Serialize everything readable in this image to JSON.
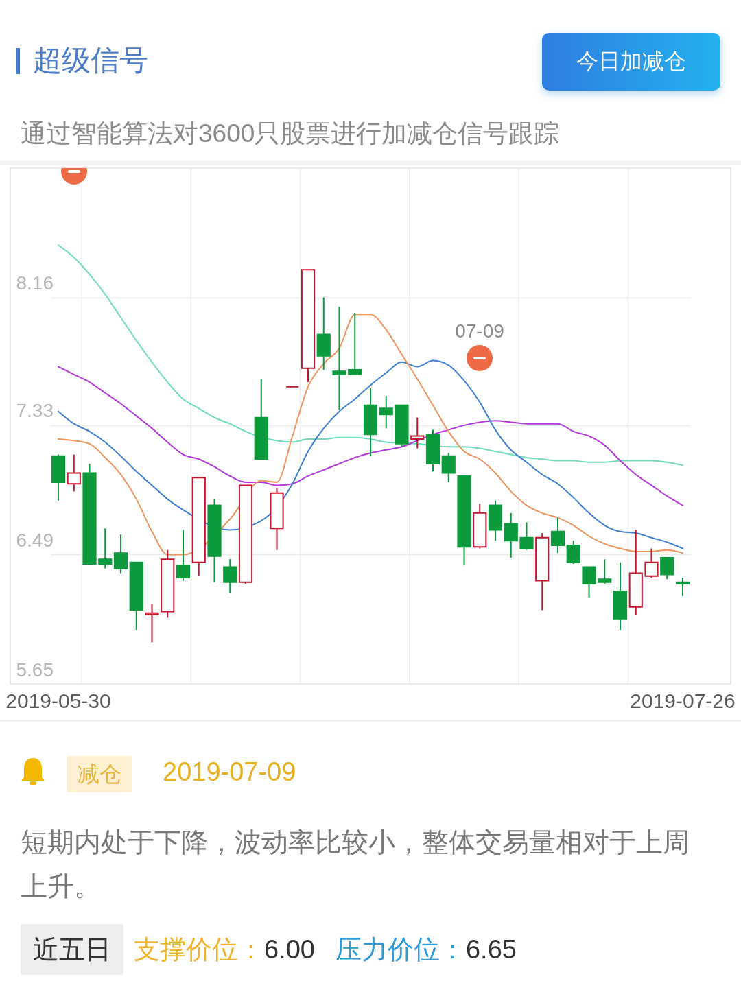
{
  "chart_data": {
    "type": "candlestick",
    "title": "超级信号",
    "subtitle": "通过智能算法对3600只股票进行加减仓信号跟踪",
    "annotations": [
      "今日加减仓",
      "07-09",
      "减仓",
      "2019-07-09",
      "短期内处于下降，波动率比较小，整体交易量相对于上周上升。",
      "近五日",
      "支撑价位：",
      "6.00",
      "压力价位：",
      "6.65"
    ],
    "categories": [
      "2019-05-30",
      null,
      null,
      null,
      null,
      null,
      null,
      null,
      null,
      null,
      null,
      null,
      null,
      null,
      null,
      null,
      null,
      null,
      null,
      null,
      null,
      null,
      null,
      null,
      null,
      null,
      null,
      null,
      null,
      null,
      null,
      null,
      null,
      null,
      null,
      null,
      null,
      null,
      null,
      null,
      "2019-07-26"
    ],
    "ohlc": [
      [
        7.13,
        7.14,
        6.84,
        6.96
      ],
      [
        6.95,
        7.14,
        6.9,
        7.02
      ],
      [
        7.02,
        7.08,
        6.43,
        6.43
      ],
      [
        6.46,
        6.66,
        6.4,
        6.43
      ],
      [
        6.5,
        6.62,
        6.37,
        6.4
      ],
      [
        6.44,
        6.44,
        6.0,
        6.13
      ],
      [
        6.1,
        6.17,
        5.92,
        6.11
      ],
      [
        6.12,
        6.52,
        6.08,
        6.46
      ],
      [
        6.42,
        6.65,
        6.32,
        6.34
      ],
      [
        6.44,
        6.99,
        6.35,
        6.99
      ],
      [
        6.81,
        6.85,
        6.31,
        6.48
      ],
      [
        6.41,
        6.46,
        6.24,
        6.31
      ],
      [
        6.31,
        6.94,
        6.3,
        6.94
      ],
      [
        7.38,
        7.63,
        7.11,
        7.11
      ],
      [
        6.66,
        6.92,
        6.52,
        6.89
      ],
      [
        7.58,
        7.58,
        7.58,
        7.58
      ],
      [
        7.7,
        8.34,
        7.61,
        8.34
      ],
      [
        7.92,
        8.16,
        7.69,
        7.78
      ],
      [
        7.68,
        8.1,
        7.43,
        7.66
      ],
      [
        7.69,
        8.06,
        7.66,
        7.66
      ],
      [
        7.46,
        7.57,
        7.13,
        7.27
      ],
      [
        7.44,
        7.52,
        7.31,
        7.4
      ],
      [
        7.46,
        7.46,
        7.19,
        7.21
      ],
      [
        7.24,
        7.38,
        7.18,
        7.26
      ],
      [
        7.27,
        7.3,
        7.03,
        7.08
      ],
      [
        7.13,
        7.15,
        6.96,
        7.02
      ],
      [
        7.0,
        7.0,
        6.42,
        6.54
      ],
      [
        6.54,
        6.82,
        6.53,
        6.76
      ],
      [
        6.81,
        6.84,
        6.58,
        6.65
      ],
      [
        6.69,
        6.76,
        6.47,
        6.58
      ],
      [
        6.6,
        6.7,
        6.52,
        6.53
      ],
      [
        6.32,
        6.63,
        6.13,
        6.6
      ],
      [
        6.64,
        6.73,
        6.5,
        6.55
      ],
      [
        6.55,
        6.58,
        6.43,
        6.44
      ],
      [
        6.41,
        6.41,
        6.21,
        6.3
      ],
      [
        6.33,
        6.46,
        6.3,
        6.31
      ],
      [
        6.25,
        6.44,
        6.0,
        6.07
      ],
      [
        6.15,
        6.65,
        6.1,
        6.37
      ],
      [
        6.35,
        6.53,
        6.34,
        6.44
      ],
      [
        6.47,
        6.47,
        6.33,
        6.36
      ],
      [
        6.31,
        6.34,
        6.22,
        6.3
      ]
    ],
    "colors": [
      "#0d9a3c",
      "#c3162f",
      "#0d9a3c",
      "#0d9a3c",
      "#0d9a3c",
      "#0d9a3c",
      "#c3162f",
      "#c3162f",
      "#0d9a3c",
      "#c3162f",
      "#0d9a3c",
      "#0d9a3c",
      "#c3162f",
      "#0d9a3c",
      "#c3162f",
      "#c3162f",
      "#c3162f",
      "#0d9a3c",
      "#0d9a3c",
      "#0d9a3c",
      "#0d9a3c",
      "#0d9a3c",
      "#0d9a3c",
      "#c3162f",
      "#0d9a3c",
      "#0d9a3c",
      "#0d9a3c",
      "#c3162f",
      "#0d9a3c",
      "#0d9a3c",
      "#0d9a3c",
      "#c3162f",
      "#0d9a3c",
      "#0d9a3c",
      "#0d9a3c",
      "#0d9a3c",
      "#0d9a3c",
      "#c3162f",
      "#c3162f",
      "#0d9a3c",
      "#0d9a3c"
    ],
    "series": [
      {
        "type": "line",
        "color": "#6fdcbf",
        "values": [
          8.5,
          8.42,
          8.31,
          8.18,
          8.03,
          7.88,
          7.74,
          7.61,
          7.5,
          7.44,
          7.38,
          7.34,
          7.29,
          null,
          7.23,
          7.22,
          7.24,
          7.24,
          7.25,
          7.25,
          7.24,
          7.22,
          null,
          7.21,
          null,
          7.19,
          7.19,
          7.18,
          7.16,
          7.14,
          7.12,
          7.11,
          7.1,
          7.1,
          7.09,
          7.09,
          7.1,
          7.1,
          7.1,
          7.09,
          7.07
        ]
      },
      {
        "type": "line",
        "color": "#b339dc",
        "values": [
          7.71,
          7.66,
          7.61,
          7.54,
          7.47,
          7.39,
          7.31,
          7.22,
          7.14,
          7.11,
          7.06,
          7.0,
          6.96,
          6.96,
          6.94,
          6.95,
          7.0,
          7.04,
          7.08,
          7.12,
          7.15,
          7.17,
          7.19,
          7.23,
          7.27,
          7.3,
          7.33,
          7.35,
          7.36,
          7.35,
          7.34,
          7.34,
          7.34,
          7.29,
          7.26,
          7.2,
          7.1,
          7.01,
          6.94,
          6.87,
          6.81
        ]
      },
      {
        "type": "line",
        "color": "#3d7fd2",
        "values": [
          7.42,
          7.34,
          7.29,
          7.22,
          7.13,
          7.03,
          6.94,
          6.85,
          6.78,
          null,
          null,
          6.65,
          null,
          6.71,
          null,
          6.95,
          7.16,
          7.31,
          7.42,
          7.5,
          7.59,
          7.67,
          7.74,
          7.71,
          7.75,
          7.72,
          7.62,
          7.48,
          7.3,
          7.17,
          7.09,
          7.01,
          6.95,
          6.86,
          6.76,
          6.68,
          6.64,
          6.63,
          6.6,
          6.57,
          6.53
        ]
      },
      {
        "type": "line",
        "color": "#f0945e",
        "values": [
          7.24,
          7.23,
          7.21,
          7.12,
          7.01,
          6.85,
          6.64,
          6.49,
          6.49,
          null,
          null,
          6.72,
          null,
          6.97,
          6.96,
          7.26,
          7.58,
          7.73,
          7.83,
          8.05,
          8.05,
          7.95,
          7.79,
          7.63,
          7.46,
          7.29,
          7.16,
          7.11,
          7.02,
          6.9,
          6.81,
          6.76,
          6.73,
          6.68,
          6.61,
          6.56,
          6.53,
          6.51,
          6.51,
          6.52,
          6.5
        ]
      }
    ],
    "ylim": [
      5.65,
      9.0
    ],
    "yticks": [
      5.65,
      6.49,
      7.33,
      8.16
    ],
    "grid": true
  }
}
